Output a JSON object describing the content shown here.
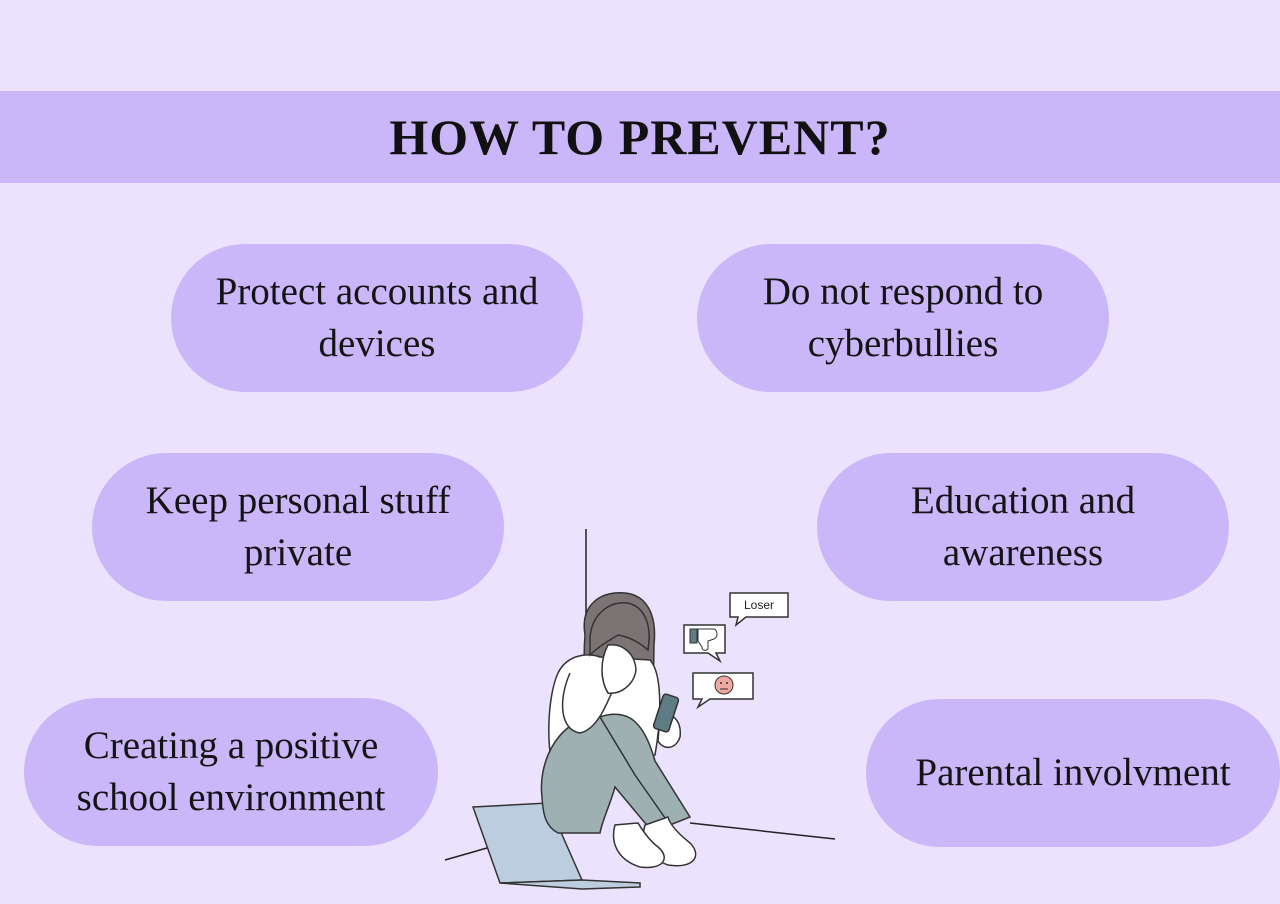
{
  "header": {
    "title": "HOW TO PREVENT?"
  },
  "tips": [
    "Protect accounts and devices",
    "Do not respond to cyberbullies",
    "Keep personal stuff private",
    "Education and awareness",
    "Creating a positive school environment",
    "Parental involvment"
  ],
  "illustration": {
    "speech_bubble_text": "Loser"
  },
  "colors": {
    "background": "#ebe2fd",
    "accent": "#c9b7f9",
    "text": "#111111"
  }
}
